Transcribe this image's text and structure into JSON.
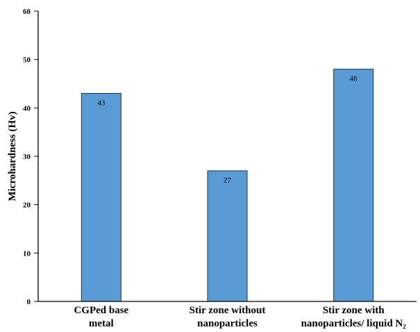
{
  "chart_data": {
    "type": "bar",
    "title": "",
    "xlabel": "",
    "ylabel": "Microhardness (Hv)",
    "ylim": [
      0,
      60
    ],
    "yticks": [
      0,
      10,
      20,
      30,
      40,
      50,
      60
    ],
    "grid": false,
    "legend": "none",
    "categories": [
      [
        "CGPed base",
        "metal"
      ],
      [
        "Stir zone without",
        "nanoparticles"
      ],
      [
        "Stir zone with",
        "nanoparticles/ liquid N₂"
      ]
    ],
    "values": [
      43,
      27,
      48
    ],
    "data_labels": [
      "43",
      "27",
      "48"
    ],
    "colors": {
      "bar_fill": "#5b9bd5",
      "bar_stroke": "#1f2d3d",
      "axis": "#000000"
    }
  }
}
